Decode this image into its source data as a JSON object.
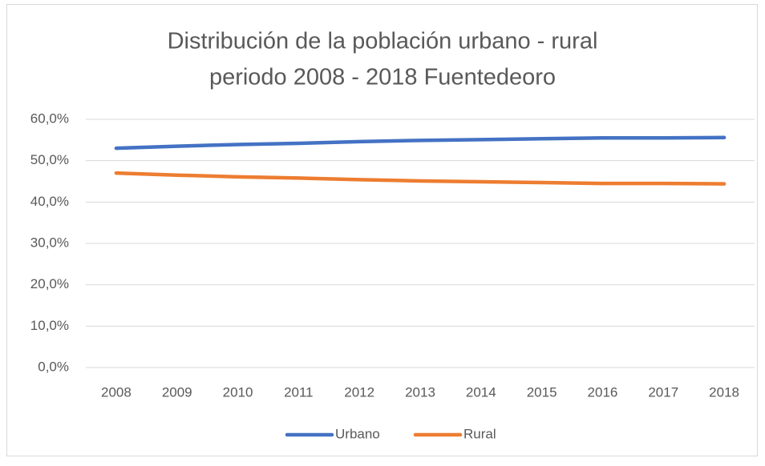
{
  "chart_data": {
    "type": "line",
    "title": [
      "Distribución de la población urbano - rural",
      "periodo 2008 - 2018 Fuentedeoro"
    ],
    "categories": [
      "2008",
      "2009",
      "2010",
      "2011",
      "2012",
      "2013",
      "2014",
      "2015",
      "2016",
      "2017",
      "2018"
    ],
    "series": [
      {
        "name": "Urbano",
        "color": "#4472c4",
        "values": [
          53.0,
          53.5,
          53.9,
          54.2,
          54.6,
          54.9,
          55.1,
          55.3,
          55.5,
          55.5,
          55.6
        ]
      },
      {
        "name": "Rural",
        "color": "#ed7d31",
        "values": [
          47.0,
          46.5,
          46.1,
          45.8,
          45.4,
          45.1,
          44.9,
          44.7,
          44.5,
          44.5,
          44.4
        ]
      }
    ],
    "ylim": [
      0,
      60
    ],
    "yticks": [
      {
        "value": 0,
        "label": "0,0%"
      },
      {
        "value": 10,
        "label": "10,0%"
      },
      {
        "value": 20,
        "label": "20,0%"
      },
      {
        "value": 30,
        "label": "30,0%"
      },
      {
        "value": 40,
        "label": "40,0%"
      },
      {
        "value": 50,
        "label": "50,0%"
      },
      {
        "value": 60,
        "label": "60,0%"
      }
    ],
    "grid": true,
    "legend": "bottom"
  }
}
